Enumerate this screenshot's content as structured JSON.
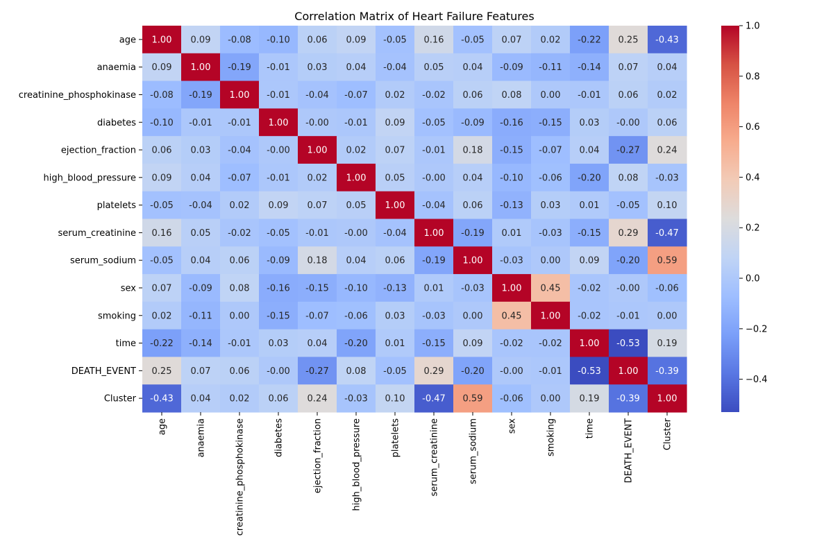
{
  "chart_data": {
    "type": "heatmap",
    "title": "Correlation Matrix of Heart Failure Features",
    "rows": [
      "age",
      "anaemia",
      "creatinine_phosphokinase",
      "diabetes",
      "ejection_fraction",
      "high_blood_pressure",
      "platelets",
      "serum_creatinine",
      "serum_sodium",
      "sex",
      "smoking",
      "time",
      "DEATH_EVENT",
      "Cluster"
    ],
    "columns": [
      "age",
      "anaemia",
      "creatinine_phosphokinase",
      "diabetes",
      "ejection_fraction",
      "high_blood_pressure",
      "platelets",
      "serum_creatinine",
      "serum_sodium",
      "sex",
      "smoking",
      "time",
      "DEATH_EVENT",
      "Cluster"
    ],
    "values": [
      [
        1.0,
        0.09,
        -0.08,
        -0.1,
        0.06,
        0.09,
        -0.05,
        0.16,
        -0.05,
        0.07,
        0.02,
        -0.22,
        0.25,
        -0.43
      ],
      [
        0.09,
        1.0,
        -0.19,
        -0.01,
        0.03,
        0.04,
        -0.04,
        0.05,
        0.04,
        -0.09,
        -0.11,
        -0.14,
        0.07,
        0.04
      ],
      [
        -0.08,
        -0.19,
        1.0,
        -0.01,
        -0.04,
        -0.07,
        0.02,
        -0.02,
        0.06,
        0.08,
        0.0,
        -0.01,
        0.06,
        0.02
      ],
      [
        -0.1,
        -0.01,
        -0.01,
        1.0,
        -0.0,
        -0.01,
        0.09,
        -0.05,
        -0.09,
        -0.16,
        -0.15,
        0.03,
        -0.0,
        0.06
      ],
      [
        0.06,
        0.03,
        -0.04,
        -0.0,
        1.0,
        0.02,
        0.07,
        -0.01,
        0.18,
        -0.15,
        -0.07,
        0.04,
        -0.27,
        0.24
      ],
      [
        0.09,
        0.04,
        -0.07,
        -0.01,
        0.02,
        1.0,
        0.05,
        -0.0,
        0.04,
        -0.1,
        -0.06,
        -0.2,
        0.08,
        -0.03
      ],
      [
        -0.05,
        -0.04,
        0.02,
        0.09,
        0.07,
        0.05,
        1.0,
        -0.04,
        0.06,
        -0.13,
        0.03,
        0.01,
        -0.05,
        0.1
      ],
      [
        0.16,
        0.05,
        -0.02,
        -0.05,
        -0.01,
        -0.0,
        -0.04,
        1.0,
        -0.19,
        0.01,
        -0.03,
        -0.15,
        0.29,
        -0.47
      ],
      [
        -0.05,
        0.04,
        0.06,
        -0.09,
        0.18,
        0.04,
        0.06,
        -0.19,
        1.0,
        -0.03,
        0.0,
        0.09,
        -0.2,
        0.59
      ],
      [
        0.07,
        -0.09,
        0.08,
        -0.16,
        -0.15,
        -0.1,
        -0.13,
        0.01,
        -0.03,
        1.0,
        0.45,
        -0.02,
        -0.0,
        -0.06
      ],
      [
        0.02,
        -0.11,
        0.0,
        -0.15,
        -0.07,
        -0.06,
        0.03,
        -0.03,
        0.0,
        0.45,
        1.0,
        -0.02,
        -0.01,
        0.0
      ],
      [
        -0.22,
        -0.14,
        -0.01,
        0.03,
        0.04,
        -0.2,
        0.01,
        -0.15,
        0.09,
        -0.02,
        -0.02,
        1.0,
        -0.53,
        0.19
      ],
      [
        0.25,
        0.07,
        0.06,
        -0.0,
        -0.27,
        0.08,
        -0.05,
        0.29,
        -0.2,
        -0.0,
        -0.01,
        -0.53,
        1.0,
        -0.39
      ],
      [
        -0.43,
        0.04,
        0.02,
        0.06,
        0.24,
        -0.03,
        0.1,
        -0.47,
        0.59,
        -0.06,
        0.0,
        0.19,
        -0.39,
        1.0
      ]
    ],
    "value_format": "2 decimals",
    "colormap": "coolwarm",
    "vmin": -0.53,
    "vmax": 1.0,
    "colorbar_ticks": [
      "1.0",
      "0.8",
      "0.6",
      "0.4",
      "0.2",
      "0.0",
      "−0.2",
      "−0.4"
    ],
    "colorbar_tick_values": [
      1.0,
      0.8,
      0.6,
      0.4,
      0.2,
      0.0,
      -0.2,
      -0.4
    ],
    "colormap_stops": [
      "#3b4cc0",
      "#5977e3",
      "#7b9ff9",
      "#9ebeff",
      "#c0d4f5",
      "#dddcdc",
      "#f2cbb7",
      "#f7ac8e",
      "#ee8468",
      "#d65244",
      "#b40426"
    ],
    "annotation_colors": {
      "light_text": "#ffffff",
      "dark_text": "#262626"
    }
  }
}
